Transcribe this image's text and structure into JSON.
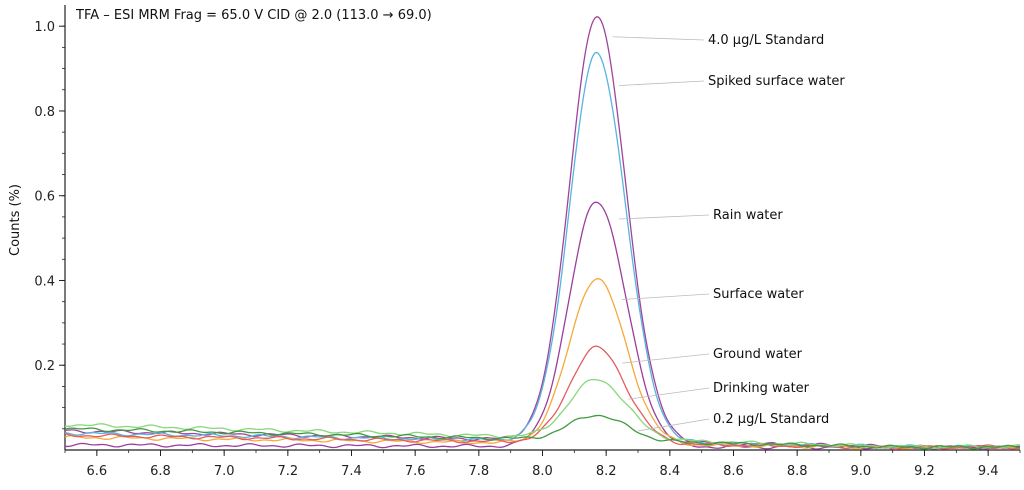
{
  "chart_data": {
    "type": "line",
    "title": "TFA – ESI MRM Frag = 65.0 V CID @ 2.0 (113.0 → 69.0)",
    "xlabel": "",
    "ylabel": "Counts (%)",
    "xlim": [
      6.5,
      9.5
    ],
    "ylim": [
      0,
      1.05
    ],
    "x_ticks": [
      6.6,
      6.8,
      7.0,
      7.2,
      7.4,
      7.6,
      7.8,
      8.0,
      8.2,
      8.4,
      8.6,
      8.8,
      9.0,
      9.2,
      9.4
    ],
    "x_tick_labels": [
      "6.6",
      "6.8",
      "7.0",
      "7.2",
      "7.4",
      "7.6",
      "7.8",
      "8.0",
      "8.2",
      "8.4",
      "8.6",
      "8.8",
      "9.0",
      "9.2",
      "9.4"
    ],
    "y_ticks": [
      0.2,
      0.4,
      0.6,
      0.8,
      1.0
    ],
    "y_tick_labels": [
      "0.2",
      "0.4",
      "0.6",
      "0.8",
      "1.0"
    ],
    "grid": false,
    "legend": "none",
    "peak_center": 8.17,
    "series": [
      {
        "name": "4.0 µg/L Standard",
        "color": "#a0449a",
        "peak": 1.0,
        "baseline_start": 0.045,
        "baseline_end": 0.008
      },
      {
        "name": "Spiked surface water",
        "color": "#56b4e3",
        "peak": 0.915,
        "baseline_start": 0.04,
        "baseline_end": 0.008
      },
      {
        "name": "Rain water",
        "color": "#9b3d9e",
        "peak": 0.58,
        "baseline_start": 0.012,
        "baseline_end": 0.006
      },
      {
        "name": "Surface water",
        "color": "#f4a93a",
        "peak": 0.39,
        "baseline_start": 0.03,
        "baseline_end": 0.006
      },
      {
        "name": "Ground water",
        "color": "#e35d5d",
        "peak": 0.225,
        "baseline_start": 0.035,
        "baseline_end": 0.006
      },
      {
        "name": "Drinking water",
        "color": "#86d879",
        "peak": 0.14,
        "baseline_start": 0.06,
        "baseline_end": 0.008
      },
      {
        "name": "0.2 µg/L Standard",
        "color": "#3f9a3f",
        "peak": 0.06,
        "baseline_start": 0.05,
        "baseline_end": 0.007
      }
    ]
  }
}
